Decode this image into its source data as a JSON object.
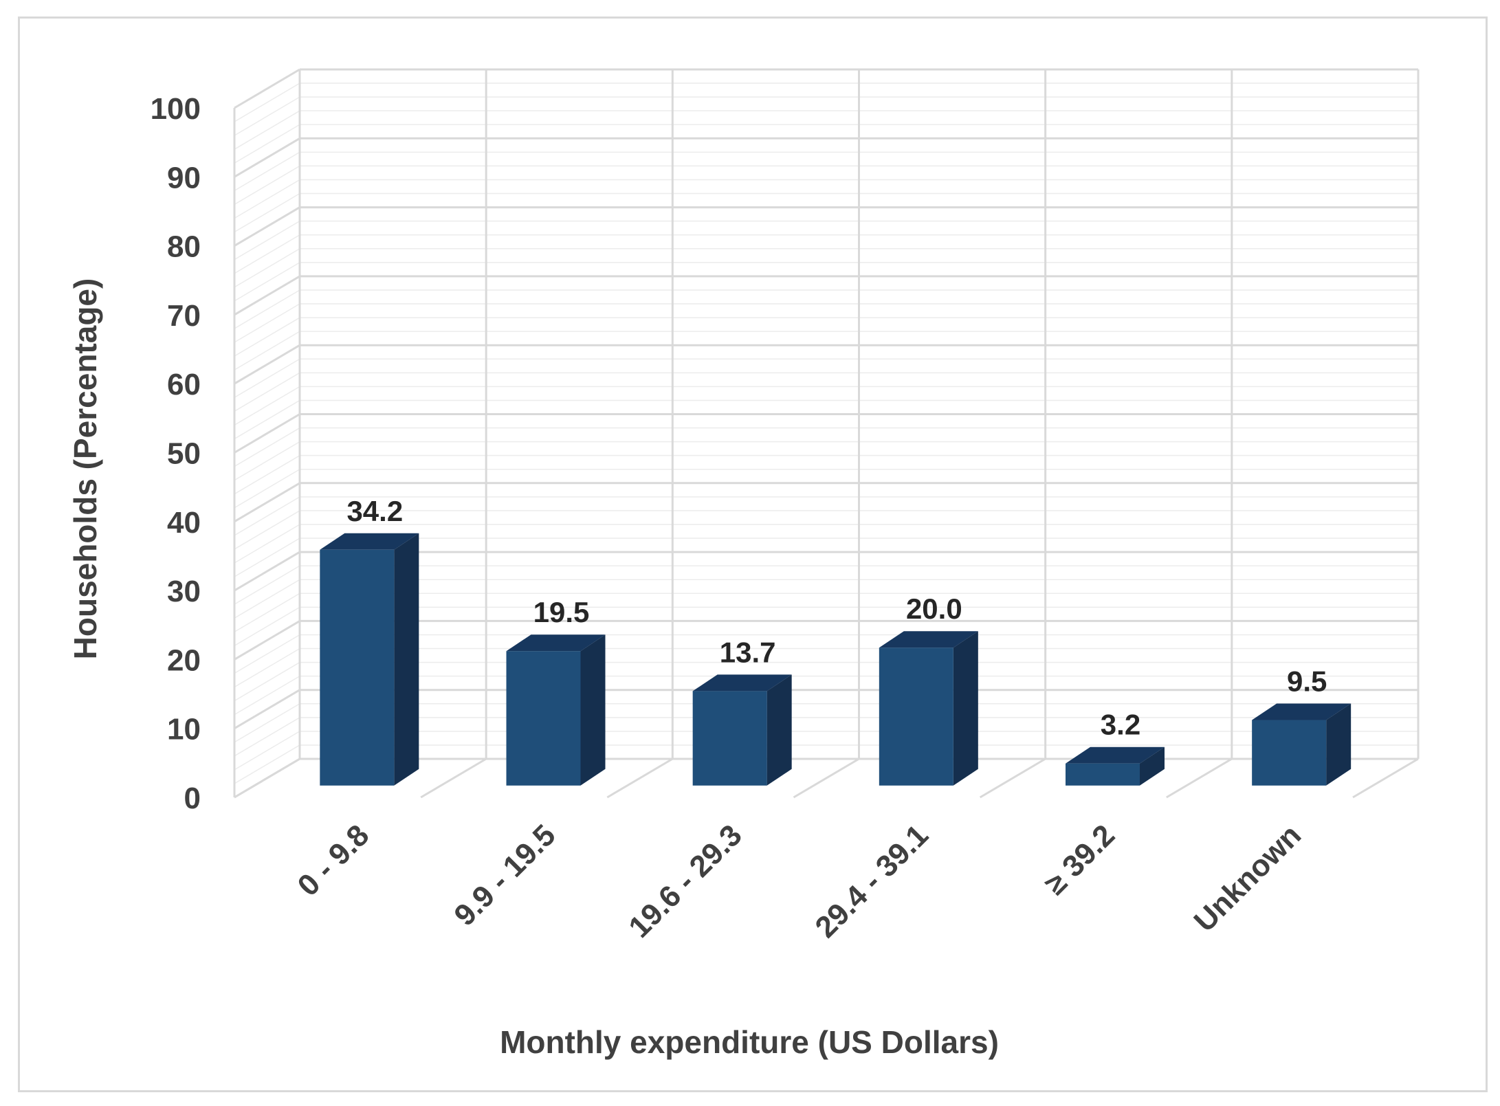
{
  "chart_data": {
    "type": "bar",
    "style": "3d-column",
    "xlabel": "Monthly expenditure (US Dollars)",
    "ylabel": "Households (Percentage)",
    "categories": [
      "0 - 9.8",
      "9.9 - 19.5",
      "19.6 - 29.3",
      "29.4 - 39.1",
      "≥ 39.2",
      "Unknown"
    ],
    "values": [
      34.2,
      19.5,
      13.7,
      20.0,
      3.2,
      9.5
    ],
    "value_labels": [
      "34.2",
      "19.5",
      "13.7",
      "20.0",
      "3.2",
      "9.5"
    ],
    "ylim": [
      0,
      100
    ],
    "yticks": [
      0,
      10,
      20,
      30,
      40,
      50,
      60,
      70,
      80,
      90,
      100
    ],
    "grid": true,
    "legend": "none",
    "colors": {
      "bar_front": "#1f4e79",
      "bar_top": "#17375e",
      "bar_side": "#152f4e",
      "grid": "#d9d9d9",
      "text": "#404040",
      "label": "#262626"
    }
  }
}
